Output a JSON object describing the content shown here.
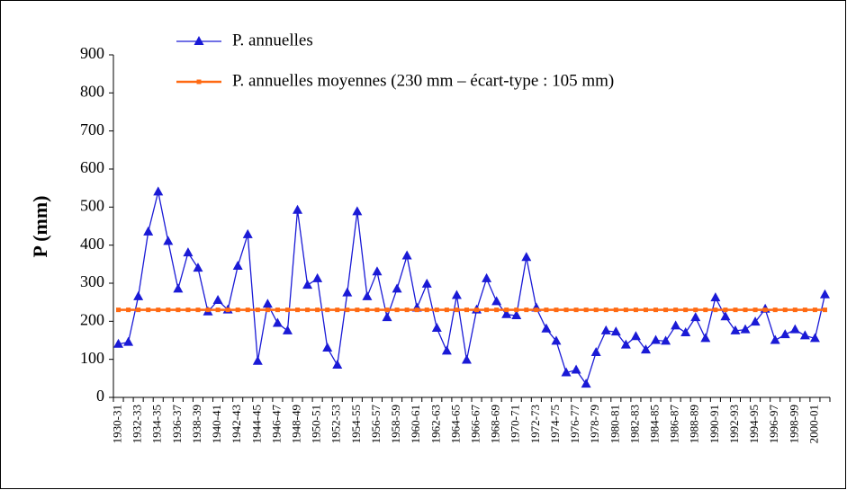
{
  "chart_data": {
    "type": "line",
    "y_label": "P (mm)",
    "categories": [
      "1930-31",
      null,
      "1932-33",
      null,
      "1934-35",
      null,
      "1936-37",
      null,
      "1938-39",
      null,
      "1940-41",
      null,
      "1942-43",
      null,
      "1944-45",
      null,
      "1946-47",
      null,
      "1948-49",
      null,
      "1950-51",
      null,
      "1952-53",
      null,
      "1954-55",
      null,
      "1956-57",
      null,
      "1958-59",
      null,
      "1960-61",
      null,
      "1962-63",
      null,
      "1964-65",
      null,
      "1966-67",
      null,
      "1968-69",
      null,
      "1970-71",
      null,
      "1972-73",
      null,
      "1974-75",
      null,
      "1976-77",
      null,
      "1978-79",
      null,
      "1980-81",
      null,
      "1982-83",
      null,
      "1984-85",
      null,
      "1986-87",
      null,
      "1988-89",
      null,
      "1990-91",
      null,
      "1992-93",
      null,
      "1994-95",
      null,
      "1996-97",
      null,
      "1998-99",
      null,
      "2000-01",
      null
    ],
    "series": [
      {
        "name": "P. annuelles",
        "color": "#1a1ad6",
        "marker": "triangle",
        "values": [
          140,
          145,
          265,
          435,
          540,
          410,
          285,
          380,
          340,
          225,
          255,
          230,
          345,
          428,
          95,
          245,
          195,
          175,
          492,
          295,
          312,
          130,
          85,
          275,
          488,
          265,
          330,
          210,
          285,
          372,
          235,
          298,
          182,
          122,
          268,
          98,
          230,
          312,
          252,
          218,
          215,
          368,
          235,
          180,
          148,
          65,
          72,
          35,
          118,
          175,
          172,
          138,
          160,
          125,
          150,
          148,
          188,
          170,
          210,
          155,
          262,
          212,
          175,
          178,
          198,
          232,
          150,
          165,
          178,
          162,
          155,
          270
        ]
      },
      {
        "name": "P. annuelles moyennes (230 mm – écart-type : 105 mm)",
        "color": "#ff6a13",
        "marker": "square",
        "values": [
          230,
          230,
          230,
          230,
          230,
          230,
          230,
          230,
          230,
          230,
          230,
          230,
          230,
          230,
          230,
          230,
          230,
          230,
          230,
          230,
          230,
          230,
          230,
          230,
          230,
          230,
          230,
          230,
          230,
          230,
          230,
          230,
          230,
          230,
          230,
          230,
          230,
          230,
          230,
          230,
          230,
          230,
          230,
          230,
          230,
          230,
          230,
          230,
          230,
          230,
          230,
          230,
          230,
          230,
          230,
          230,
          230,
          230,
          230,
          230,
          230,
          230,
          230,
          230,
          230,
          230,
          230,
          230,
          230,
          230,
          230,
          230
        ]
      }
    ],
    "ylim": [
      0,
      900
    ],
    "yticks": [
      0,
      100,
      200,
      300,
      400,
      500,
      600,
      700,
      800,
      900
    ],
    "grid": false,
    "legend": "top-left"
  }
}
